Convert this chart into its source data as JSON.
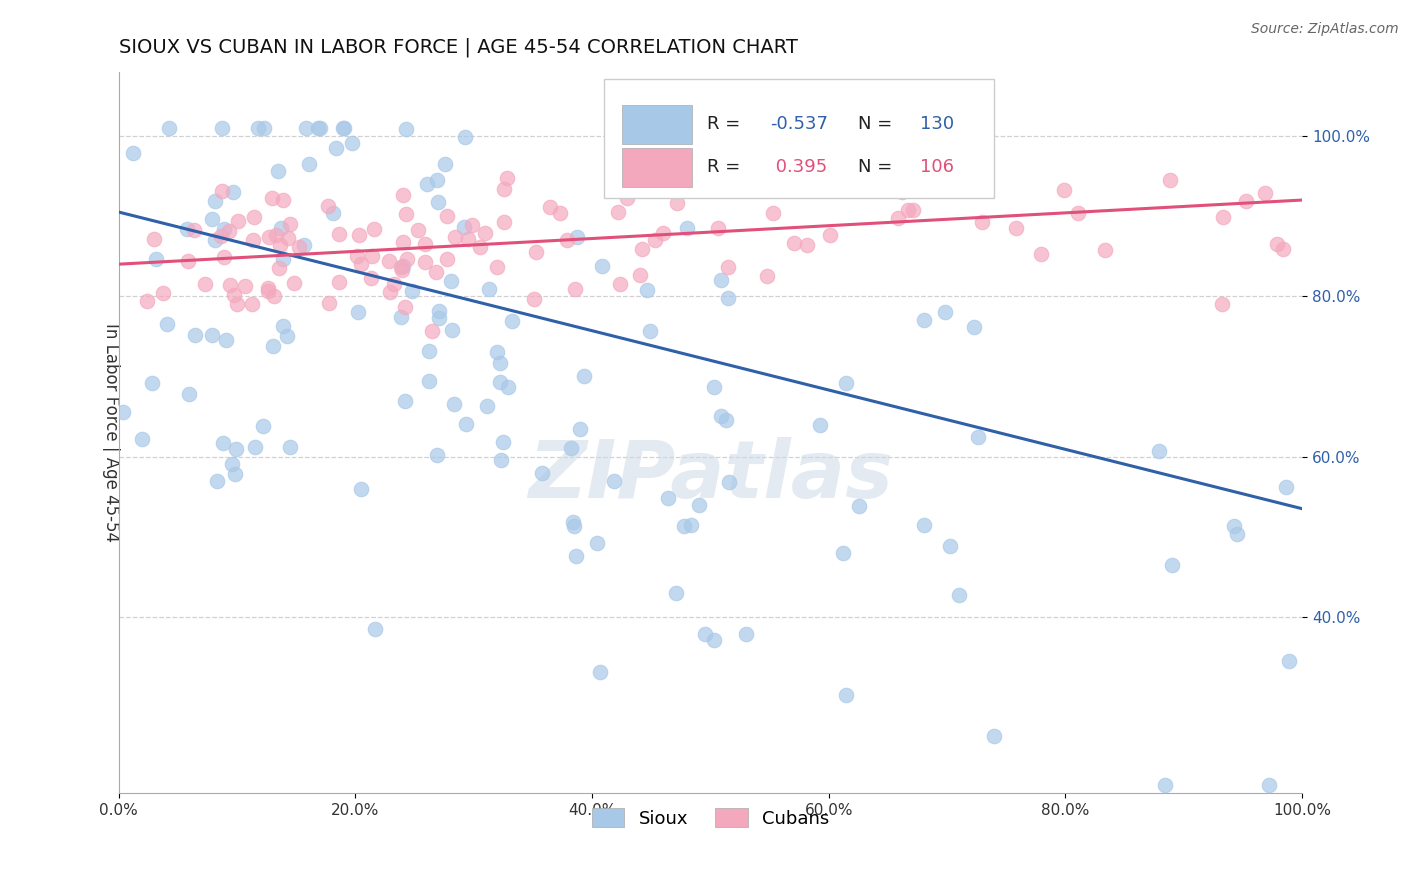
{
  "title": "SIOUX VS CUBAN IN LABOR FORCE | AGE 45-54 CORRELATION CHART",
  "source": "Source: ZipAtlas.com",
  "ylabel": "In Labor Force | Age 45-54",
  "xlim": [
    0.0,
    1.0
  ],
  "ylim": [
    0.18,
    1.08
  ],
  "xticks": [
    0.0,
    0.2,
    0.4,
    0.6,
    0.8,
    1.0
  ],
  "yticks": [
    0.4,
    0.6,
    0.8,
    1.0
  ],
  "xtick_labels": [
    "0.0%",
    "20.0%",
    "40.0%",
    "60.0%",
    "80.0%",
    "100.0%"
  ],
  "ytick_labels": [
    "40.0%",
    "60.0%",
    "80.0%",
    "100.0%"
  ],
  "sioux_color": "#a8c8e8",
  "cuban_color": "#f4a8be",
  "sioux_R": -0.537,
  "sioux_N": 130,
  "cuban_R": 0.395,
  "cuban_N": 106,
  "sioux_line_color": "#3060a8",
  "cuban_line_color": "#e0507a",
  "background_color": "#ffffff",
  "watermark": "ZIPatlas",
  "sioux_line_start_y": 0.905,
  "sioux_line_end_y": 0.535,
  "cuban_line_start_y": 0.84,
  "cuban_line_end_y": 0.92
}
